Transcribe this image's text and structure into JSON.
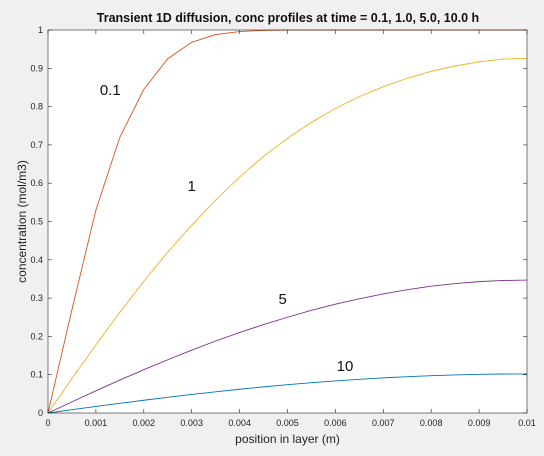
{
  "chart_data": {
    "type": "line",
    "title": "Transient 1D diffusion, conc profiles at time = 0.1, 1.0, 5.0, 10.0 h",
    "xlabel": "position in layer (m)",
    "ylabel": "concentration (mol/m3)",
    "xlim": [
      0,
      0.01
    ],
    "ylim": [
      0,
      1
    ],
    "xticks": [
      "0",
      "0.001",
      "0.002",
      "0.003",
      "0.004",
      "0.005",
      "0.006",
      "0.007",
      "0.008",
      "0.009",
      "0.01"
    ],
    "yticks": [
      "0",
      "0.1",
      "0.2",
      "0.3",
      "0.4",
      "0.5",
      "0.6",
      "0.7",
      "0.8",
      "0.9",
      "1"
    ],
    "grid": false,
    "legend": "none",
    "x": [
      0,
      0.0005,
      0.001,
      0.0015,
      0.002,
      0.0025,
      0.003,
      0.0035,
      0.004,
      0.0045,
      0.005,
      0.0055,
      0.006,
      0.0065,
      0.007,
      0.0075,
      0.008,
      0.0085,
      0.009,
      0.0095,
      0.01
    ],
    "series": [
      {
        "color": "#d95319",
        "values": [
          0,
          0.27,
          0.53,
          0.72,
          0.845,
          0.925,
          0.968,
          0.988,
          0.996,
          0.999,
          1,
          1,
          1,
          1,
          1,
          1,
          1,
          1,
          1,
          1,
          1
        ]
      },
      {
        "color": "#edb120",
        "values": [
          0,
          0.09,
          0.178,
          0.263,
          0.344,
          0.42,
          0.49,
          0.556,
          0.616,
          0.67,
          0.717,
          0.759,
          0.795,
          0.826,
          0.852,
          0.874,
          0.892,
          0.906,
          0.917,
          0.924,
          0.926
        ]
      },
      {
        "color": "#7e2f8e",
        "values": [
          0,
          0.029,
          0.058,
          0.086,
          0.113,
          0.139,
          0.164,
          0.188,
          0.21,
          0.231,
          0.25,
          0.268,
          0.284,
          0.298,
          0.311,
          0.322,
          0.331,
          0.338,
          0.343,
          0.346,
          0.347
        ]
      },
      {
        "color": "#0072bd",
        "values": [
          0,
          0.0085,
          0.017,
          0.0253,
          0.0333,
          0.041,
          0.0484,
          0.0554,
          0.062,
          0.0682,
          0.0739,
          0.0791,
          0.0838,
          0.088,
          0.0917,
          0.0948,
          0.0974,
          0.0994,
          0.1009,
          0.1018,
          0.1021
        ]
      }
    ],
    "annotations": [
      {
        "text": "0.1",
        "x": 0.0013,
        "y": 0.83
      },
      {
        "text": "1",
        "x": 0.003,
        "y": 0.58
      },
      {
        "text": "5",
        "x": 0.0049,
        "y": 0.285
      },
      {
        "text": "10",
        "x": 0.0062,
        "y": 0.11
      }
    ]
  }
}
